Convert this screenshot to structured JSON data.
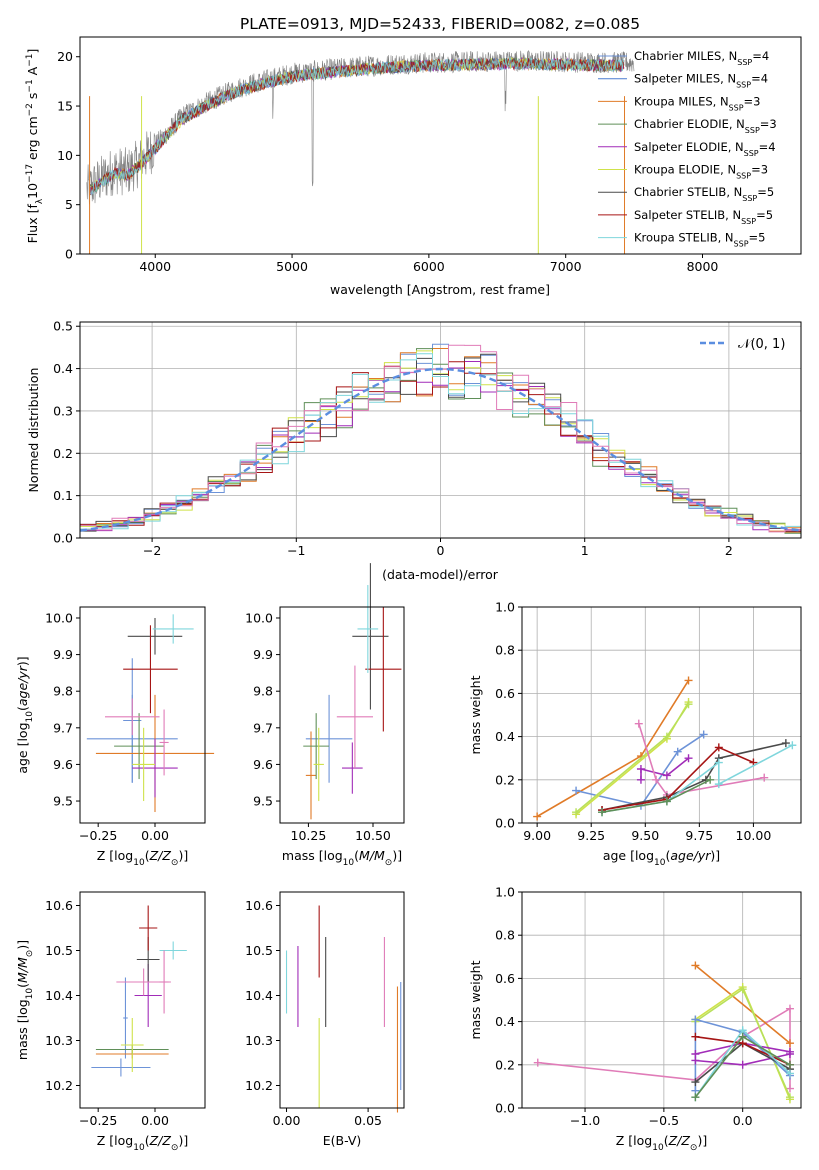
{
  "figure": {
    "title": "PLATE=0913, MJD=52433, FIBERID=0082, z=0.085"
  },
  "colors": {
    "Chabrier MILES": "#6d93d8",
    "Salpeter MILES": "#6d93d8",
    "Kroupa MILES": "#e07b28",
    "Chabrier ELODIE": "#5f8f58",
    "Salpeter ELODIE": "#a12cb8",
    "Kroupa ELODIE": "#cfe24a",
    "Chabrier STELIB": "#4a4a4a",
    "Salpeter STELIB": "#a61515",
    "Kroupa STELIB": "#7fd6dc",
    "data": "#808080",
    "pink": "#e07cb8",
    "lime": "#b8e05a"
  },
  "chart_data": [
    {
      "type": "line",
      "xlabel": "wavelength [Angstrom, rest frame]",
      "ylabel": "Flux [f_λ10^-17 erg cm^-2 s^-1 A^-1]",
      "xlim": [
        3450,
        8720
      ],
      "ylim": [
        0,
        22
      ],
      "xticks": [
        "4000",
        "5000",
        "6000",
        "7000",
        "8000"
      ],
      "yticks": [
        "0",
        "5",
        "10",
        "15",
        "20"
      ],
      "grid": false,
      "legend_position": "top-right",
      "legend": [
        {
          "label": "Chabrier MILES, N",
          "sub": "SSP",
          "tail": "=4",
          "color": "#6d93d8"
        },
        {
          "label": "Salpeter MILES, N",
          "sub": "SSP",
          "tail": "=4",
          "color": "#4a7bd0"
        },
        {
          "label": "Kroupa MILES, N",
          "sub": "SSP",
          "tail": "=3",
          "color": "#e07b28"
        },
        {
          "label": "Chabrier ELODIE, N",
          "sub": "SSP",
          "tail": "=3",
          "color": "#5f8f58"
        },
        {
          "label": "Salpeter ELODIE, N",
          "sub": "SSP",
          "tail": "=4",
          "color": "#a12cb8"
        },
        {
          "label": "Kroupa ELODIE, N",
          "sub": "SSP",
          "tail": "=3",
          "color": "#cfe24a"
        },
        {
          "label": "Chabrier STELIB, N",
          "sub": "SSP",
          "tail": "=5",
          "color": "#4a4a4a"
        },
        {
          "label": "Salpeter STELIB, N",
          "sub": "SSP",
          "tail": "=5",
          "color": "#a61515"
        },
        {
          "label": "Kroupa STELIB, N",
          "sub": "SSP",
          "tail": "=5",
          "color": "#7fd6dc"
        }
      ],
      "continuum": {
        "x": [
          3500,
          3600,
          3700,
          3800,
          3900,
          4000,
          4100,
          4200,
          4400,
          4600,
          4800,
          5000,
          5200,
          5500,
          5800,
          6000,
          6300,
          6600,
          7000,
          7400
        ],
        "y": [
          6.5,
          7.5,
          8.5,
          8.3,
          9.5,
          11.0,
          12.5,
          14.0,
          15.5,
          16.8,
          17.6,
          18.3,
          18.6,
          19.0,
          19.3,
          19.4,
          19.5,
          19.6,
          19.5,
          19.4
        ]
      },
      "model_range": {
        "x": [
          3500,
          7450
        ]
      },
      "data_range": {
        "x": [
          3500,
          7500
        ]
      }
    },
    {
      "type": "bar",
      "xlabel": "(data-model)/error",
      "ylabel": "Normed distribution",
      "xlim": [
        -2.5,
        2.5
      ],
      "ylim": [
        0,
        0.51
      ],
      "xticks": [
        "−2",
        "−1",
        "0",
        "1",
        "2"
      ],
      "xtick_values": [
        -2,
        -1,
        0,
        1,
        2
      ],
      "yticks": [
        "0.0",
        "0.1",
        "0.2",
        "0.3",
        "0.4",
        "0.5"
      ],
      "ytick_values": [
        0,
        0.1,
        0.2,
        0.3,
        0.4,
        0.5
      ],
      "grid": true,
      "legend_position": "top-right",
      "legend": [
        {
          "label": "𝒩(0, 1)",
          "color": "#5b8ee0"
        }
      ],
      "bins": 45,
      "series_colors": [
        "#6d93d8",
        "#e07b28",
        "#5f8f58",
        "#a12cb8",
        "#cfe24a",
        "#4a4a4a",
        "#a61515",
        "#7fd6dc",
        "#e07cb8"
      ]
    },
    {
      "type": "scatter",
      "xlabel": "Z [log10(Z/Z⊙)]",
      "ylabel": "age  [log10(age/yr)]",
      "xlim": [
        -0.33,
        0.22
      ],
      "ylim": [
        9.44,
        10.03
      ],
      "xticks": [
        "−0.25",
        "0.00"
      ],
      "xtick_values": [
        -0.25,
        0.0
      ],
      "yticks": [
        "9.5",
        "9.6",
        "9.7",
        "9.8",
        "9.9",
        "10.0"
      ],
      "ytick_values": [
        9.5,
        9.6,
        9.7,
        9.8,
        9.9,
        10.0
      ],
      "points": [
        {
          "x": -0.1,
          "y": 9.67,
          "xerr": 0.2,
          "yerr": 0.12,
          "color": "#6d93d8"
        },
        {
          "x": -0.1,
          "y": 9.72,
          "xerr": 0.04,
          "yerr": 0.17,
          "color": "#6d93d8"
        },
        {
          "x": 0.0,
          "y": 9.63,
          "xerr": 0.26,
          "yerr": 0.16,
          "color": "#e07b28"
        },
        {
          "x": -0.07,
          "y": 9.65,
          "xerr": 0.11,
          "yerr": 0.09,
          "color": "#5f8f58"
        },
        {
          "x": 0.0,
          "y": 9.59,
          "xerr": 0.1,
          "yerr": 0.08,
          "color": "#a12cb8"
        },
        {
          "x": -0.05,
          "y": 9.6,
          "xerr": 0.05,
          "yerr": 0.1,
          "color": "#cfe24a"
        },
        {
          "x": 0.0,
          "y": 9.95,
          "xerr": 0.12,
          "yerr": 0.05,
          "color": "#4a4a4a"
        },
        {
          "x": -0.02,
          "y": 9.86,
          "xerr": 0.12,
          "yerr": 0.12,
          "color": "#a61515"
        },
        {
          "x": 0.08,
          "y": 9.97,
          "xerr": 0.09,
          "yerr": 0.04,
          "color": "#7fd6dc"
        },
        {
          "x": -0.1,
          "y": 9.73,
          "xerr": 0.12,
          "yerr": 0.05,
          "color": "#e07cb8"
        },
        {
          "x": 0.04,
          "y": 9.66,
          "xerr": 0.02,
          "yerr": 0.09,
          "color": "#e07cb8"
        }
      ]
    },
    {
      "type": "scatter",
      "xlabel": "mass [log10(M/M⊙)]",
      "ylabel": "",
      "xlim": [
        10.14,
        10.62
      ],
      "ylim": [
        9.44,
        10.03
      ],
      "xticks": [
        "10.25",
        "10.50"
      ],
      "xtick_values": [
        10.25,
        10.5
      ],
      "yticks": [
        "9.5",
        "9.6",
        "9.7",
        "9.8",
        "9.9",
        "10.0"
      ],
      "ytick_values": [
        9.5,
        9.6,
        9.7,
        9.8,
        9.9,
        10.0
      ],
      "points": [
        {
          "x": 10.33,
          "y": 9.67,
          "xerr": 0.09,
          "yerr": 0.12,
          "color": "#6d93d8"
        },
        {
          "x": 10.26,
          "y": 9.57,
          "xerr": 0.02,
          "yerr": 0.12,
          "color": "#e07b28"
        },
        {
          "x": 10.28,
          "y": 9.65,
          "xerr": 0.05,
          "yerr": 0.09,
          "color": "#5f8f58"
        },
        {
          "x": 10.42,
          "y": 9.59,
          "xerr": 0.04,
          "yerr": 0.07,
          "color": "#a12cb8"
        },
        {
          "x": 10.29,
          "y": 9.6,
          "xerr": 0.02,
          "yerr": 0.1,
          "color": "#cfe24a"
        },
        {
          "x": 10.49,
          "y": 9.95,
          "xerr": 0.07,
          "yerr": 0.2,
          "color": "#4a4a4a"
        },
        {
          "x": 10.54,
          "y": 9.86,
          "xerr": 0.07,
          "yerr": 0.17,
          "color": "#a61515"
        },
        {
          "x": 10.48,
          "y": 9.97,
          "xerr": 0.04,
          "yerr": 0.12,
          "color": "#7fd6dc"
        },
        {
          "x": 10.43,
          "y": 9.73,
          "xerr": 0.07,
          "yerr": 0.14,
          "color": "#e07cb8"
        }
      ]
    },
    {
      "type": "line",
      "xlabel": "age  [log10(age/yr)]",
      "ylabel": "mass weight",
      "xlim": [
        8.93,
        10.22
      ],
      "ylim": [
        0,
        1
      ],
      "xticks": [
        "9.00",
        "9.25",
        "9.50",
        "9.75",
        "10.00"
      ],
      "xtick_values": [
        9.0,
        9.25,
        9.5,
        9.75,
        10.0
      ],
      "yticks": [
        "0.0",
        "0.2",
        "0.4",
        "0.6",
        "0.8",
        "1.0"
      ],
      "ytick_values": [
        0,
        0.2,
        0.4,
        0.6,
        0.8,
        1.0
      ],
      "grid": true,
      "series": [
        {
          "color": "#e07b28",
          "x": [
            9.0,
            9.48,
            9.7
          ],
          "y": [
            0.03,
            0.31,
            0.66
          ]
        },
        {
          "color": "#6d93d8",
          "x": [
            9.18,
            9.48,
            9.65,
            9.77
          ],
          "y": [
            0.15,
            0.08,
            0.33,
            0.41
          ]
        },
        {
          "color": "#cfe24a",
          "x": [
            9.18,
            9.6,
            9.7
          ],
          "y": [
            0.04,
            0.39,
            0.56
          ]
        },
        {
          "color": "#b8e05a",
          "x": [
            9.18,
            9.6,
            9.7
          ],
          "y": [
            0.05,
            0.4,
            0.55
          ]
        },
        {
          "color": "#a12cb8",
          "x": [
            9.48,
            9.48,
            9.6,
            9.7
          ],
          "y": [
            0.2,
            0.25,
            0.22,
            0.3
          ]
        },
        {
          "color": "#e07cb8",
          "x": [
            9.47,
            9.55,
            9.6,
            10.05
          ],
          "y": [
            0.46,
            0.2,
            0.13,
            0.21
          ]
        },
        {
          "color": "#4a4a4a",
          "x": [
            9.3,
            9.6,
            9.78,
            9.84,
            10.15
          ],
          "y": [
            0.06,
            0.12,
            0.2,
            0.3,
            0.37
          ]
        },
        {
          "color": "#a61515",
          "x": [
            9.3,
            9.6,
            9.84,
            10.0
          ],
          "y": [
            0.06,
            0.11,
            0.35,
            0.28
          ]
        },
        {
          "color": "#7fd6dc",
          "x": [
            9.3,
            9.6,
            9.84,
            9.84,
            10.18
          ],
          "y": [
            0.05,
            0.1,
            0.28,
            0.18,
            0.36
          ]
        },
        {
          "color": "#5f8f58",
          "x": [
            9.3,
            9.6,
            9.8
          ],
          "y": [
            0.05,
            0.1,
            0.2
          ]
        }
      ]
    },
    {
      "type": "scatter",
      "xlabel": "Z [log10(Z/Z⊙)]",
      "ylabel": "mass [log10(M/M⊙)]",
      "xlim": [
        -0.33,
        0.22
      ],
      "ylim": [
        10.15,
        10.63
      ],
      "xticks": [
        "−0.25",
        "0.00"
      ],
      "xtick_values": [
        -0.25,
        0.0
      ],
      "yticks": [
        "10.2",
        "10.3",
        "10.4",
        "10.5",
        "10.6"
      ],
      "ytick_values": [
        10.2,
        10.3,
        10.4,
        10.5,
        10.6
      ],
      "points": [
        {
          "x": -0.15,
          "y": 10.24,
          "xerr": 0.13,
          "yerr": 0.02,
          "color": "#6d93d8"
        },
        {
          "x": -0.13,
          "y": 10.35,
          "xerr": 0.01,
          "yerr": 0.09,
          "color": "#6d93d8"
        },
        {
          "x": -0.1,
          "y": 10.27,
          "xerr": 0.16,
          "yerr": 0.01,
          "color": "#e07b28"
        },
        {
          "x": -0.1,
          "y": 10.28,
          "xerr": 0.16,
          "yerr": 0.01,
          "color": "#5f8f58"
        },
        {
          "x": -0.03,
          "y": 10.4,
          "xerr": 0.06,
          "yerr": 0.07,
          "color": "#a12cb8"
        },
        {
          "x": -0.1,
          "y": 10.29,
          "xerr": 0.05,
          "yerr": 0.06,
          "color": "#cfe24a"
        },
        {
          "x": -0.03,
          "y": 10.48,
          "xerr": 0.05,
          "yerr": 0.05,
          "color": "#4a4a4a"
        },
        {
          "x": -0.03,
          "y": 10.55,
          "xerr": 0.04,
          "yerr": 0.05,
          "color": "#a61515"
        },
        {
          "x": 0.08,
          "y": 10.5,
          "xerr": 0.06,
          "yerr": 0.02,
          "color": "#7fd6dc"
        },
        {
          "x": -0.05,
          "y": 10.43,
          "xerr": 0.12,
          "yerr": 0.03,
          "color": "#e07cb8"
        },
        {
          "x": 0.04,
          "y": 10.43,
          "xerr": 0.02,
          "yerr": 0.07,
          "color": "#e07cb8"
        }
      ]
    },
    {
      "type": "scatter",
      "xlabel": "E(B-V)",
      "ylabel": "",
      "xlim": [
        -0.004,
        0.072
      ],
      "ylim": [
        10.15,
        10.63
      ],
      "xticks": [
        "0.00",
        "0.05"
      ],
      "xtick_values": [
        0.0,
        0.05
      ],
      "yticks": [
        "10.2",
        "10.3",
        "10.4",
        "10.5",
        "10.6"
      ],
      "ytick_values": [
        10.2,
        10.3,
        10.4,
        10.5,
        10.6
      ],
      "points": [
        {
          "x": 0.0,
          "y": 10.43,
          "yerr": 0.07,
          "color": "#7fd6dc"
        },
        {
          "x": 0.007,
          "y": 10.42,
          "yerr": 0.09,
          "color": "#a12cb8"
        },
        {
          "x": 0.02,
          "y": 10.25,
          "yerr": 0.1,
          "color": "#cfe24a"
        },
        {
          "x": 0.02,
          "y": 10.52,
          "yerr": 0.08,
          "color": "#a61515"
        },
        {
          "x": 0.024,
          "y": 10.43,
          "yerr": 0.1,
          "color": "#4a4a4a"
        },
        {
          "x": 0.06,
          "y": 10.43,
          "yerr": 0.1,
          "color": "#e07cb8"
        },
        {
          "x": 0.068,
          "y": 10.28,
          "yerr": 0.14,
          "color": "#e07b28"
        },
        {
          "x": 0.07,
          "y": 10.31,
          "yerr": 0.12,
          "color": "#6d93d8"
        }
      ]
    },
    {
      "type": "line",
      "xlabel": "Z [log10(Z/Z⊙)]",
      "ylabel": "mass weight",
      "xlim": [
        -1.4,
        0.37
      ],
      "ylim": [
        0,
        1
      ],
      "xticks": [
        "−1.0",
        "−0.5",
        "0.0"
      ],
      "xtick_values": [
        -1.0,
        -0.5,
        0.0
      ],
      "yticks": [
        "0.0",
        "0.2",
        "0.4",
        "0.6",
        "0.8",
        "1.0"
      ],
      "ytick_values": [
        0,
        0.2,
        0.4,
        0.6,
        0.8,
        1.0
      ],
      "grid": true,
      "series": [
        {
          "color": "#e07cb8",
          "x": [
            -1.3,
            -0.3,
            0.0,
            0.3,
            0.3
          ],
          "y": [
            0.21,
            0.13,
            0.33,
            0.46,
            0.09
          ]
        },
        {
          "color": "#e07b28",
          "x": [
            -0.3,
            0.3
          ],
          "y": [
            0.66,
            0.3
          ]
        },
        {
          "color": "#cfe24a",
          "x": [
            -0.3,
            0.0,
            0.3
          ],
          "y": [
            0.41,
            0.56,
            0.04
          ]
        },
        {
          "color": "#b8e05a",
          "x": [
            -0.3,
            0.0,
            0.3
          ],
          "y": [
            0.4,
            0.55,
            0.05
          ]
        },
        {
          "color": "#6d93d8",
          "x": [
            -0.3,
            -0.3,
            0.0,
            0.3
          ],
          "y": [
            0.08,
            0.41,
            0.35,
            0.15
          ]
        },
        {
          "color": "#a12cb8",
          "x": [
            -0.3,
            0.0,
            0.3
          ],
          "y": [
            0.22,
            0.2,
            0.25
          ]
        },
        {
          "color": "#a12cb8",
          "x": [
            -0.3,
            0.0,
            0.3
          ],
          "y": [
            0.25,
            0.3,
            0.26
          ]
        },
        {
          "color": "#4a4a4a",
          "x": [
            -0.3,
            0.0,
            0.3
          ],
          "y": [
            0.12,
            0.3,
            0.18
          ]
        },
        {
          "color": "#a61515",
          "x": [
            -0.3,
            0.0,
            0.3
          ],
          "y": [
            0.33,
            0.3,
            0.2
          ]
        },
        {
          "color": "#7fd6dc",
          "x": [
            -0.3,
            0.0,
            0.3
          ],
          "y": [
            0.05,
            0.36,
            0.16
          ]
        },
        {
          "color": "#5f8f58",
          "x": [
            -0.3,
            0.0,
            0.3
          ],
          "y": [
            0.05,
            0.33,
            0.2
          ]
        }
      ]
    }
  ]
}
